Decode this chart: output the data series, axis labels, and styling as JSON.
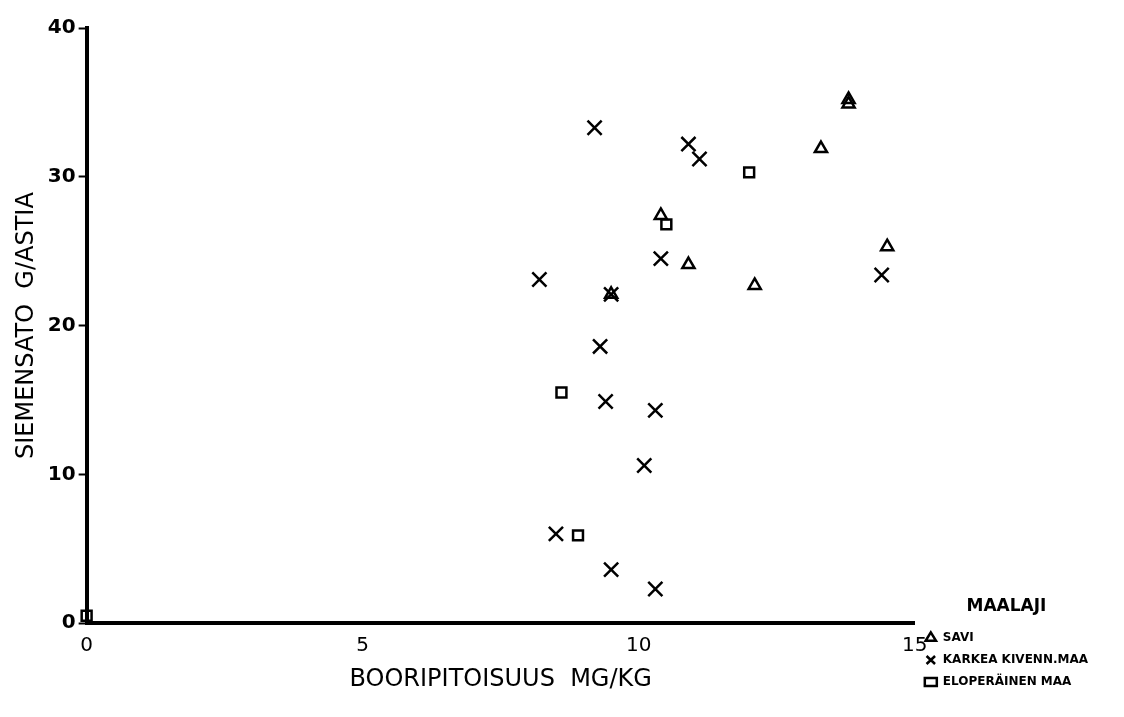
{
  "chart_data": {
    "type": "scatter",
    "xlabel": "BOORIPITOISUUS  MG/KG",
    "ylabel": "SIEMENSATO  G/ASTIA",
    "legend_title": "MAALAJI",
    "legend": "bottom right",
    "grid": false,
    "xlim": [
      0,
      15
    ],
    "xticks": [
      0,
      5,
      10,
      15
    ],
    "ylim": [
      0,
      40
    ],
    "yticks": [
      0,
      10,
      20,
      30,
      40
    ],
    "series": [
      {
        "name": "SAVI",
        "color": "#000000",
        "marker": "triangle",
        "x": [
          13.8,
          13.8,
          13.3,
          10.4,
          10.9,
          12.1,
          14.5,
          9.5
        ],
        "values": [
          35.2,
          34.9,
          31.9,
          27.4,
          24.1,
          22.7,
          25.3,
          22.1
        ]
      },
      {
        "name": "KARKEA KIVENN.MAA",
        "color": "#000000",
        "marker": "cross",
        "x": [
          9.2,
          10.9,
          11.1,
          10.4,
          8.2,
          14.4,
          9.5,
          9.3,
          9.4,
          10.3,
          10.1,
          8.5,
          9.5,
          10.3
        ],
        "values": [
          33.3,
          32.2,
          31.2,
          24.5,
          23.1,
          23.4,
          22.1,
          18.6,
          14.9,
          14.3,
          10.6,
          6.0,
          3.6,
          2.3
        ]
      },
      {
        "name": "ELOPERÄINEN MAA",
        "color": "#000000",
        "marker": "square",
        "x": [
          12.0,
          10.5,
          8.6,
          8.9,
          0
        ],
        "values": [
          30.3,
          26.8,
          15.5,
          5.9,
          0.5
        ]
      }
    ]
  }
}
